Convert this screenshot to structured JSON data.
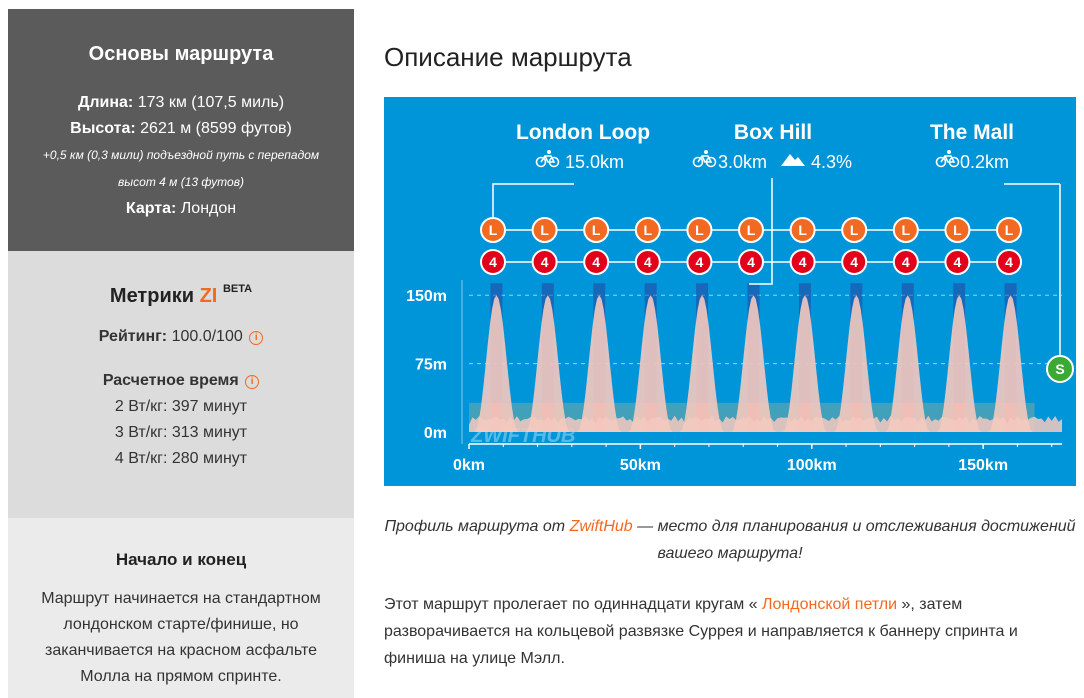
{
  "sidebar": {
    "basics": {
      "title": "Основы маршрута",
      "length_label": "Длина:",
      "length_value": " 173 км (107,5 миль)",
      "elevation_label": "Высота:",
      "elevation_value": " 2621 м (8599 футов)",
      "leadin_line1": "+0,5 км (0,3 мили) подъездной путь с перепадом",
      "leadin_line2": "высот 4 м (13 футов)",
      "map_label": "Карта:",
      "map_value": " Лондон"
    },
    "metrics": {
      "title_prefix": "Метрики ",
      "title_zi": "ZI",
      "title_beta": "BETA",
      "rating_label": "Рейтинг:",
      "rating_value": " 100.0/100",
      "est_time_label": "Расчетное время",
      "times": [
        "2 Вт/кг: 397 минут",
        "3 Вт/кг: 313 минут",
        "4 Вт/кг: 280 минут"
      ]
    },
    "start_end": {
      "title": "Начало и конец",
      "text": "Маршрут начинается на стандартном лондонском старте/финише, но заканчивается на красном асфальте Молла на прямом спринте."
    }
  },
  "main": {
    "title": "Описание маршрута",
    "caption_before": "Профиль маршрута от ",
    "caption_link": "ZwiftHub",
    "caption_after": " — место для планирования и отслеживания достижений вашего маршрута!",
    "desc_before": "Этот маршрут пролегает по одиннадцати кругам « ",
    "desc_link": "Лондонской петли",
    "desc_after": " », затем разворачивается на кольцевой развязке Суррея и направляется к баннеру спринта и финиша на улице Мэлл."
  },
  "chart_data": {
    "type": "area",
    "segments": [
      {
        "name": "London Loop",
        "distance": "15.0km"
      },
      {
        "name": "Box Hill",
        "distance": "3.0km",
        "grade": "4.3%"
      },
      {
        "name": "The Mall",
        "distance": "0.2km"
      }
    ],
    "lap_badge": "L",
    "sprint_badge": "4",
    "finish_badge": "S",
    "laps": 11,
    "y_ticks": [
      "150m",
      "75m",
      "0m"
    ],
    "x_ticks": [
      "0km",
      "50km",
      "100km",
      "150km"
    ],
    "xlim": [
      0,
      173
    ],
    "ylim": [
      0,
      170
    ],
    "climb_peaks_km": [
      8,
      23,
      38,
      53,
      68,
      83,
      98,
      113,
      128,
      143,
      158
    ],
    "peak_elevation_m": 150,
    "watermark": "ZWIFTHUB",
    "colors": {
      "background": "#0095d9",
      "badge_orange": "#f26a22",
      "badge_red": "#e3001b",
      "finish_green": "#3aaa35",
      "profile": "#f5c9bf"
    }
  }
}
